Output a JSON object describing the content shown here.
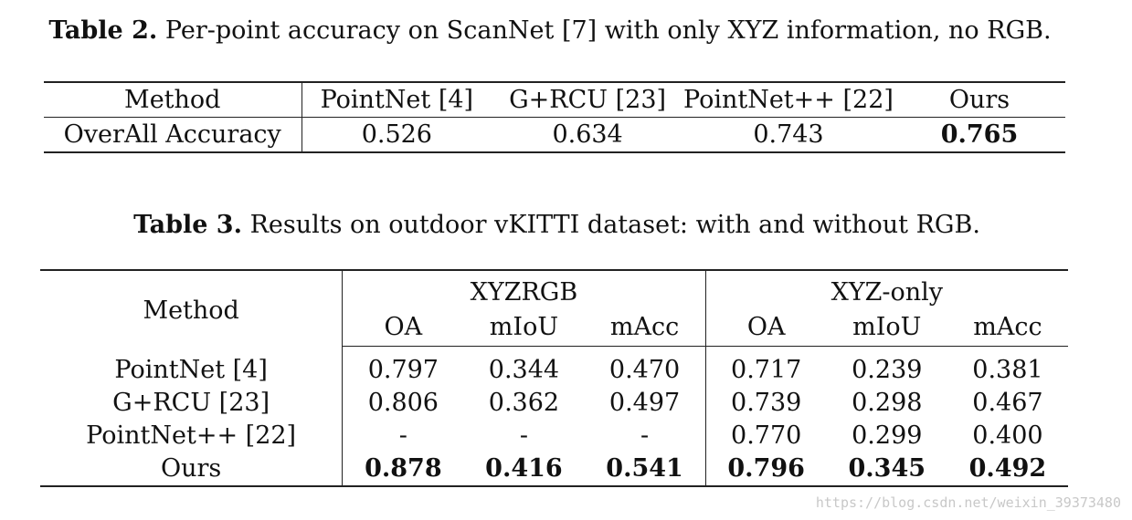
{
  "table2": {
    "caption_label": "Table 2.",
    "caption_text": "Per-point accuracy on ScanNet [7] with only XYZ information, no RGB.",
    "header": [
      "Method",
      "PointNet [4]",
      "G+RCU [23]",
      "PointNet++ [22]",
      "Ours"
    ],
    "row": [
      "OverAll Accuracy",
      "0.526",
      "0.634",
      "0.743",
      "0.765"
    ]
  },
  "table3": {
    "caption_label": "Table 3.",
    "caption_text": "Results on outdoor vKITTI dataset: with and without RGB.",
    "method_header": "Method",
    "groups": [
      "XYZRGB",
      "XYZ-only"
    ],
    "subheaders": [
      "OA",
      "mIoU",
      "mAcc",
      "OA",
      "mIoU",
      "mAcc"
    ],
    "rows": [
      {
        "method": "PointNet [4]",
        "values": [
          "0.797",
          "0.344",
          "0.470",
          "0.717",
          "0.239",
          "0.381"
        ]
      },
      {
        "method": "G+RCU [23]",
        "values": [
          "0.806",
          "0.362",
          "0.497",
          "0.739",
          "0.298",
          "0.467"
        ]
      },
      {
        "method": "PointNet++ [22]",
        "values": [
          "-",
          "-",
          "-",
          "0.770",
          "0.299",
          "0.400"
        ]
      },
      {
        "method": "Ours",
        "values": [
          "0.878",
          "0.416",
          "0.541",
          "0.796",
          "0.345",
          "0.492"
        ]
      }
    ]
  },
  "watermark": "https://blog.csdn.net/weixin_39373480"
}
